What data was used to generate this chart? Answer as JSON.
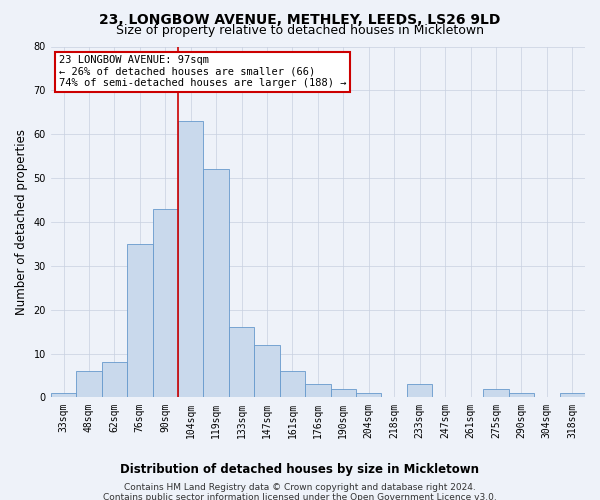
{
  "title": "23, LONGBOW AVENUE, METHLEY, LEEDS, LS26 9LD",
  "subtitle": "Size of property relative to detached houses in Mickletown",
  "xlabel": "Distribution of detached houses by size in Mickletown",
  "ylabel": "Number of detached properties",
  "categories": [
    "33sqm",
    "48sqm",
    "62sqm",
    "76sqm",
    "90sqm",
    "104sqm",
    "119sqm",
    "133sqm",
    "147sqm",
    "161sqm",
    "176sqm",
    "190sqm",
    "204sqm",
    "218sqm",
    "233sqm",
    "247sqm",
    "261sqm",
    "275sqm",
    "290sqm",
    "304sqm",
    "318sqm"
  ],
  "values": [
    1,
    6,
    8,
    35,
    43,
    63,
    52,
    16,
    12,
    6,
    3,
    2,
    1,
    0,
    3,
    0,
    0,
    2,
    1,
    0,
    1
  ],
  "bar_color": "#c9d9ec",
  "bar_edge_color": "#6699cc",
  "ylim": [
    0,
    80
  ],
  "yticks": [
    0,
    10,
    20,
    30,
    40,
    50,
    60,
    70,
    80
  ],
  "property_label": "23 LONGBOW AVENUE: 97sqm",
  "annotation_line1": "← 26% of detached houses are smaller (66)",
  "annotation_line2": "74% of semi-detached houses are larger (188) →",
  "annotation_box_color": "#ffffff",
  "annotation_box_edge": "#cc0000",
  "vline_color": "#cc0000",
  "grid_color": "#c8d0e0",
  "footer1": "Contains HM Land Registry data © Crown copyright and database right 2024.",
  "footer2": "Contains public sector information licensed under the Open Government Licence v3.0.",
  "bg_color": "#eef2f9",
  "plot_bg_color": "#eef2f9",
  "title_fontsize": 10,
  "subtitle_fontsize": 9,
  "axis_label_fontsize": 8.5,
  "tick_fontsize": 7,
  "footer_fontsize": 6.5,
  "annotation_fontsize": 7.5
}
